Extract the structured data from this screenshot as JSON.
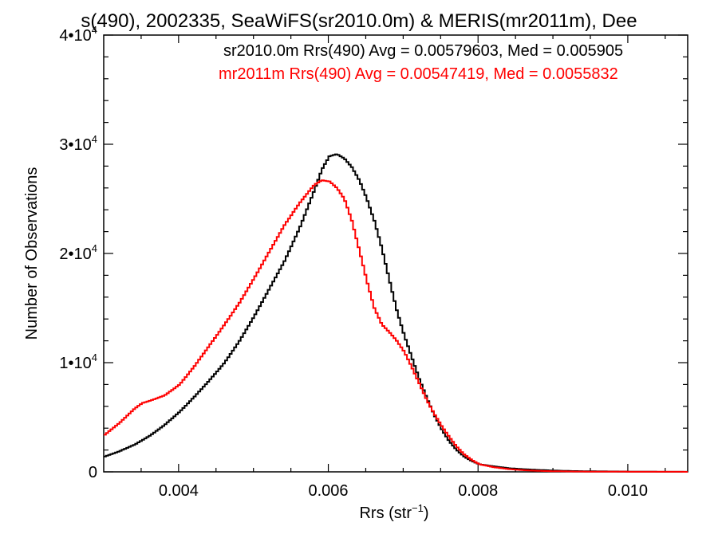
{
  "chart_data": {
    "type": "line",
    "title": "s(490), 2002335, SeaWiFS(sr2010.0m) & MERIS(mr2011m), Dee",
    "xlabel": "Rrs (str",
    "xlabel_sup": "−1",
    "xlabel_suffix": ")",
    "ylabel": "Number of Observations",
    "xlim": [
      0.003,
      0.0108
    ],
    "ylim": [
      0,
      40000
    ],
    "x_ticks": [
      {
        "value": 0.004,
        "label": "0.004"
      },
      {
        "value": 0.006,
        "label": "0.006"
      },
      {
        "value": 0.008,
        "label": "0.008"
      },
      {
        "value": 0.01,
        "label": "0.010"
      }
    ],
    "y_ticks": [
      {
        "value": 0,
        "label": "0",
        "sup": ""
      },
      {
        "value": 10000,
        "label": "1•10",
        "sup": "4"
      },
      {
        "value": 20000,
        "label": "2•10",
        "sup": "4"
      },
      {
        "value": 30000,
        "label": "3•10",
        "sup": "4"
      },
      {
        "value": 40000,
        "label": "4•10",
        "sup": "4"
      }
    ],
    "grid": false,
    "annotations": [
      {
        "text": "sr2010.0m Rrs(490) Avg = 0.00579603, Med = 0.005905",
        "color": "#000000"
      },
      {
        "text": "mr2011m Rrs(490) Avg = 0.00547419, Med = 0.0055832",
        "color": "#ff0000"
      }
    ],
    "series": [
      {
        "color": "#000000",
        "points": [
          [
            0.003,
            1400
          ],
          [
            0.0032,
            1900
          ],
          [
            0.0034,
            2500
          ],
          [
            0.0036,
            3300
          ],
          [
            0.0038,
            4300
          ],
          [
            0.004,
            5500
          ],
          [
            0.0042,
            6900
          ],
          [
            0.0044,
            8400
          ],
          [
            0.0046,
            10000
          ],
          [
            0.0048,
            12000
          ],
          [
            0.005,
            14300
          ],
          [
            0.0052,
            16800
          ],
          [
            0.0054,
            19300
          ],
          [
            0.0056,
            22300
          ],
          [
            0.0058,
            25800
          ],
          [
            0.0059,
            27700
          ],
          [
            0.006,
            28900
          ],
          [
            0.0061,
            29100
          ],
          [
            0.0062,
            28700
          ],
          [
            0.0063,
            27900
          ],
          [
            0.0064,
            26700
          ],
          [
            0.0065,
            25000
          ],
          [
            0.0066,
            23000
          ],
          [
            0.0067,
            20500
          ],
          [
            0.0068,
            17600
          ],
          [
            0.0069,
            14800
          ],
          [
            0.007,
            12500
          ],
          [
            0.0071,
            10500
          ],
          [
            0.0072,
            8500
          ],
          [
            0.0073,
            6800
          ],
          [
            0.0074,
            5200
          ],
          [
            0.0075,
            3900
          ],
          [
            0.0076,
            2800
          ],
          [
            0.0077,
            2000
          ],
          [
            0.0078,
            1400
          ],
          [
            0.0079,
            1000
          ],
          [
            0.008,
            700
          ],
          [
            0.0082,
            500
          ],
          [
            0.0084,
            330
          ],
          [
            0.0086,
            240
          ],
          [
            0.0088,
            170
          ],
          [
            0.009,
            120
          ],
          [
            0.0092,
            80
          ],
          [
            0.0095,
            50
          ],
          [
            0.01,
            25
          ],
          [
            0.0104,
            10
          ],
          [
            0.0108,
            5
          ]
        ]
      },
      {
        "color": "#ff0000",
        "points": [
          [
            0.003,
            3400
          ],
          [
            0.0032,
            4500
          ],
          [
            0.0034,
            5800
          ],
          [
            0.0035,
            6300
          ],
          [
            0.0036,
            6500
          ],
          [
            0.0038,
            7000
          ],
          [
            0.004,
            8000
          ],
          [
            0.0042,
            9700
          ],
          [
            0.0044,
            11600
          ],
          [
            0.0046,
            13500
          ],
          [
            0.0048,
            15500
          ],
          [
            0.005,
            17800
          ],
          [
            0.0052,
            20200
          ],
          [
            0.0054,
            22600
          ],
          [
            0.0056,
            24600
          ],
          [
            0.0058,
            26300
          ],
          [
            0.0059,
            26700
          ],
          [
            0.006,
            26600
          ],
          [
            0.0061,
            26000
          ],
          [
            0.0062,
            25000
          ],
          [
            0.0063,
            23000
          ],
          [
            0.0064,
            20300
          ],
          [
            0.0065,
            17500
          ],
          [
            0.0066,
            15000
          ],
          [
            0.0067,
            13500
          ],
          [
            0.0068,
            12800
          ],
          [
            0.0069,
            12000
          ],
          [
            0.007,
            11000
          ],
          [
            0.0071,
            9600
          ],
          [
            0.0072,
            8100
          ],
          [
            0.0073,
            6600
          ],
          [
            0.0074,
            5300
          ],
          [
            0.0075,
            4200
          ],
          [
            0.0076,
            3200
          ],
          [
            0.0077,
            2300
          ],
          [
            0.0078,
            1600
          ],
          [
            0.0079,
            1100
          ],
          [
            0.008,
            700
          ],
          [
            0.0082,
            420
          ],
          [
            0.0084,
            250
          ],
          [
            0.0086,
            150
          ],
          [
            0.0088,
            90
          ],
          [
            0.009,
            55
          ],
          [
            0.0093,
            30
          ],
          [
            0.0097,
            15
          ],
          [
            0.0102,
            8
          ],
          [
            0.0108,
            3
          ]
        ]
      }
    ]
  }
}
